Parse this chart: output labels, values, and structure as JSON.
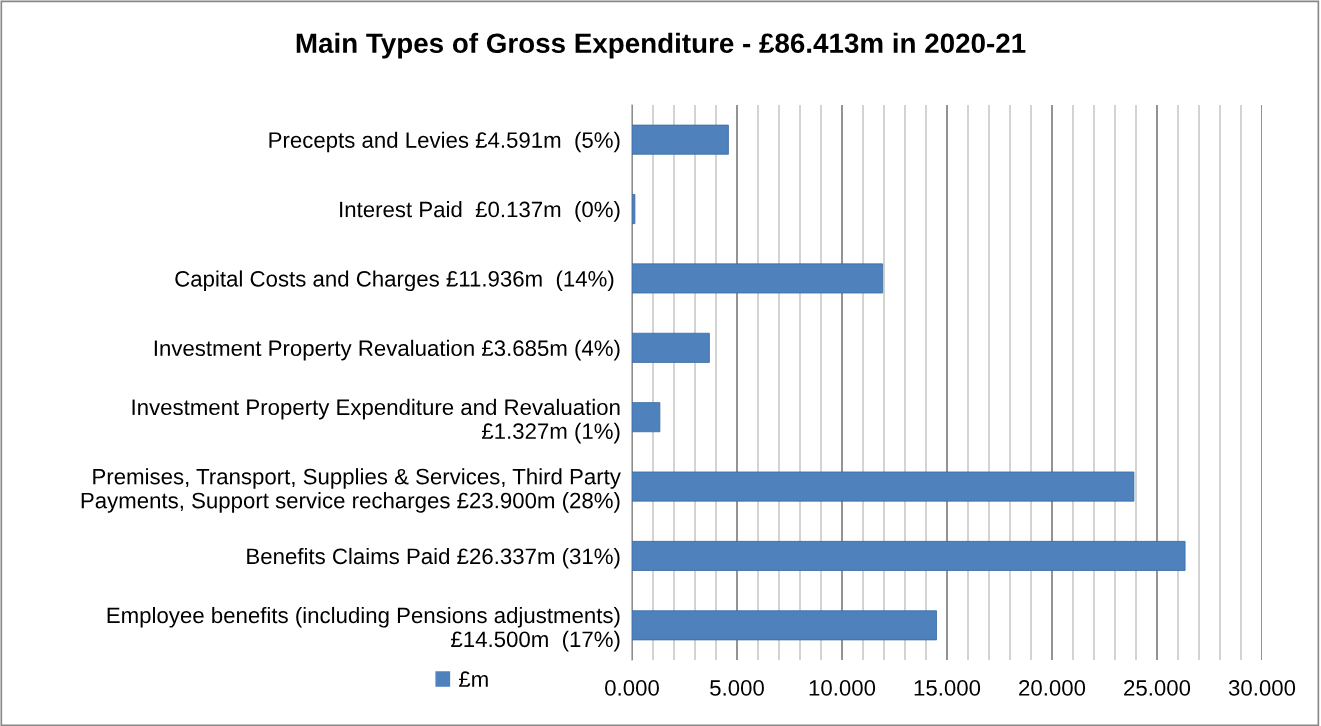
{
  "chart_data": {
    "type": "bar",
    "orientation": "horizontal",
    "title": "Main Types of Gross Expenditure - £86.413m in 2020-21",
    "categories": [
      "Precepts and Levies £4.591m  (5%)",
      "Interest Paid  £0.137m  (0%)",
      "Capital Costs and Charges £11.936m  (14%) ",
      "Investment Property Revaluation £3.685m (4%)",
      "Investment Property Expenditure and Revaluation\n£1.327m (1%)",
      "Premises, Transport, Supplies & Services, Third Party\nPayments, Support service recharges £23.900m (28%)",
      "Benefits Claims Paid £26.337m (31%)",
      "Employee benefits (including Pensions adjustments)\n£14.500m  (17%)"
    ],
    "series": [
      {
        "name": "£m",
        "color": "#4f81bd",
        "values": [
          4.591,
          0.137,
          11.936,
          3.685,
          1.327,
          23.9,
          26.337,
          14.5
        ]
      }
    ],
    "xlim": [
      0,
      30
    ],
    "xticks": [
      {
        "value": 0,
        "label": "0.000"
      },
      {
        "value": 1,
        "label": null
      },
      {
        "value": 2,
        "label": null
      },
      {
        "value": 3,
        "label": null
      },
      {
        "value": 4,
        "label": null
      },
      {
        "value": 5,
        "label": "5.000"
      },
      {
        "value": 6,
        "label": null
      },
      {
        "value": 7,
        "label": null
      },
      {
        "value": 8,
        "label": null
      },
      {
        "value": 9,
        "label": null
      },
      {
        "value": 10,
        "label": "10.000"
      },
      {
        "value": 11,
        "label": null
      },
      {
        "value": 12,
        "label": null
      },
      {
        "value": 13,
        "label": null
      },
      {
        "value": 14,
        "label": null
      },
      {
        "value": 15,
        "label": "15.000"
      },
      {
        "value": 16,
        "label": null
      },
      {
        "value": 17,
        "label": null
      },
      {
        "value": 18,
        "label": null
      },
      {
        "value": 19,
        "label": null
      },
      {
        "value": 20,
        "label": "20.000"
      },
      {
        "value": 21,
        "label": null
      },
      {
        "value": 22,
        "label": null
      },
      {
        "value": 23,
        "label": null
      },
      {
        "value": 24,
        "label": null
      },
      {
        "value": 25,
        "label": "25.000"
      },
      {
        "value": 26,
        "label": null
      },
      {
        "value": 27,
        "label": null
      },
      {
        "value": 28,
        "label": null
      },
      {
        "value": 29,
        "label": null
      },
      {
        "value": 30,
        "label": "30.000"
      }
    ],
    "grid": "x",
    "legend": "bottom left"
  }
}
